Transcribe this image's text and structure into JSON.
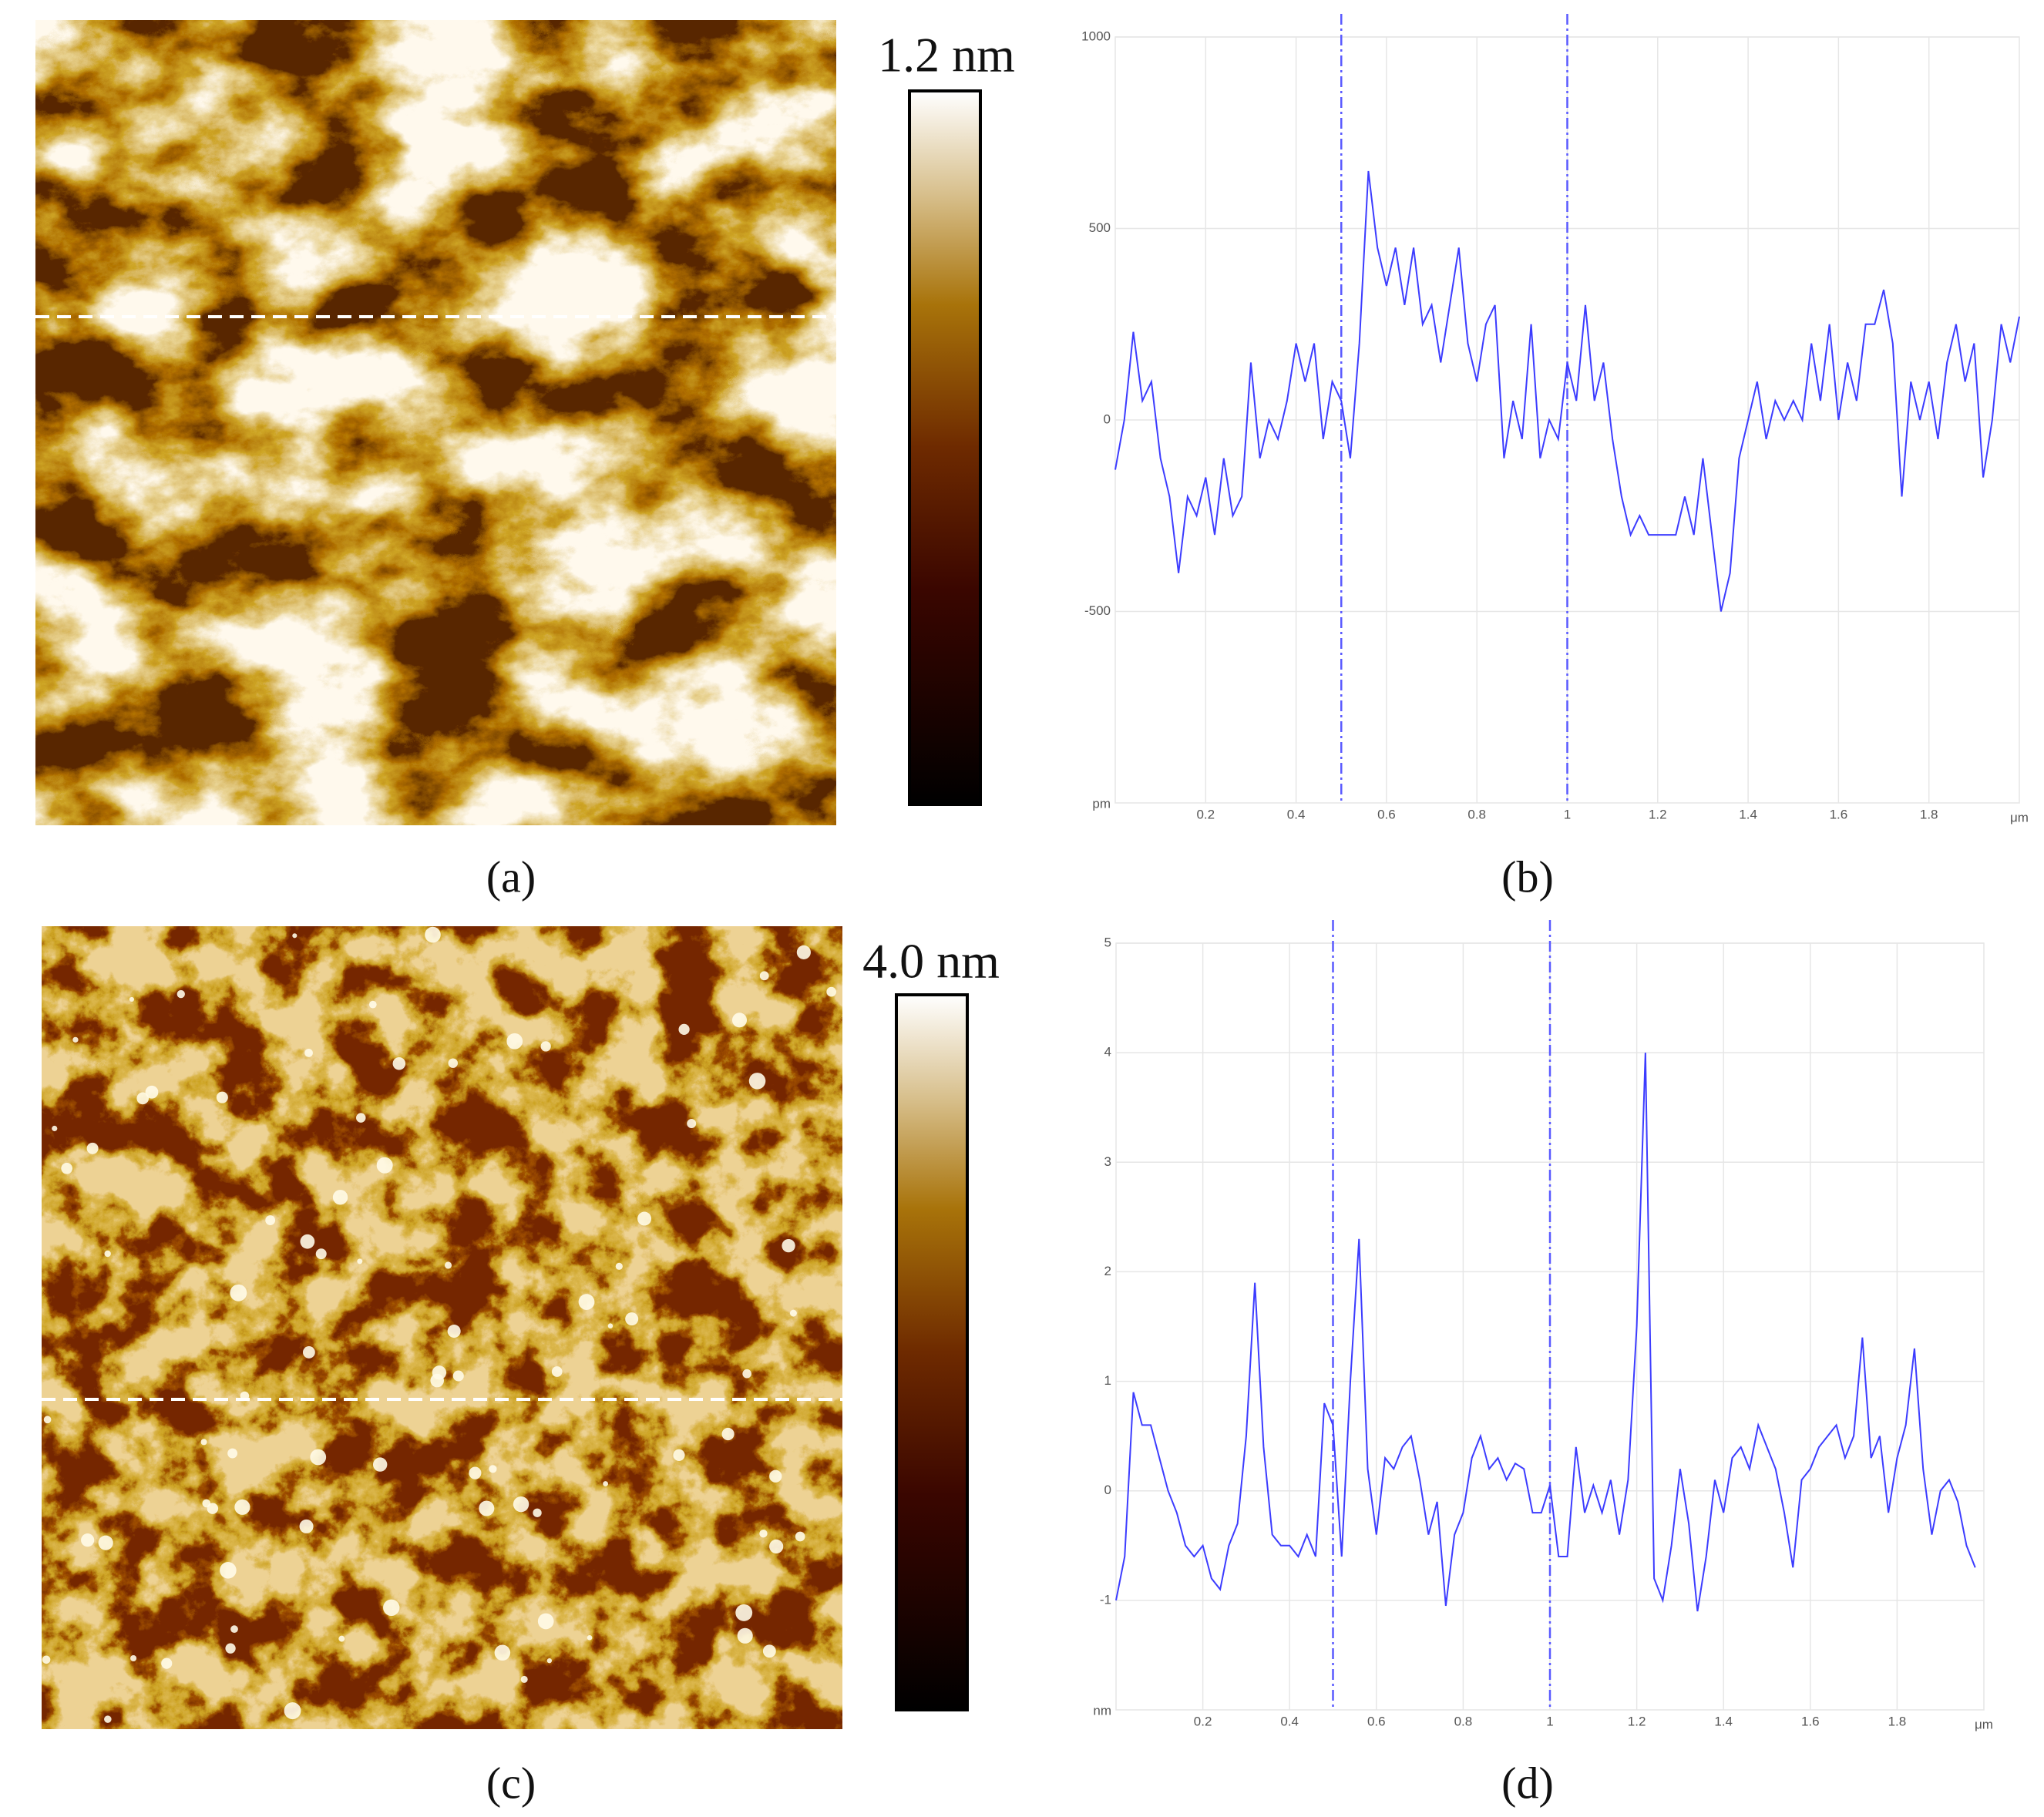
{
  "images": [
    {
      "scale_label": "1.2 nm",
      "caption": "(a)"
    },
    {
      "scale_label": "4.0 nm",
      "caption": "(c)"
    }
  ],
  "chart_data": [
    {
      "type": "line",
      "caption": "(b)",
      "xlabel": "μm",
      "ylabel": "pm",
      "xlim": [
        0,
        2
      ],
      "ylim": [
        -1000,
        1000
      ],
      "xticks": [
        0.2,
        0.4,
        0.6,
        0.8,
        1,
        1.2,
        1.4,
        1.6,
        1.8
      ],
      "yticks": [
        1000,
        500,
        0,
        -500
      ],
      "grid": true,
      "markers": [
        0.5,
        1
      ],
      "color": "#3c3cff",
      "x": [
        0,
        0.02,
        0.04,
        0.06,
        0.08,
        0.1,
        0.12,
        0.14,
        0.16,
        0.18,
        0.2,
        0.22,
        0.24,
        0.26,
        0.28,
        0.3,
        0.32,
        0.34,
        0.36,
        0.38,
        0.4,
        0.42,
        0.44,
        0.46,
        0.48,
        0.5,
        0.52,
        0.54,
        0.56,
        0.58,
        0.6,
        0.62,
        0.64,
        0.66,
        0.68,
        0.7,
        0.72,
        0.74,
        0.76,
        0.78,
        0.8,
        0.82,
        0.84,
        0.86,
        0.88,
        0.9,
        0.92,
        0.94,
        0.96,
        0.98,
        1,
        1.02,
        1.04,
        1.06,
        1.08,
        1.1,
        1.12,
        1.14,
        1.16,
        1.18,
        1.2,
        1.22,
        1.24,
        1.26,
        1.28,
        1.3,
        1.32,
        1.34,
        1.36,
        1.38,
        1.4,
        1.42,
        1.44,
        1.46,
        1.48,
        1.5,
        1.52,
        1.54,
        1.56,
        1.58,
        1.6,
        1.62,
        1.64,
        1.66,
        1.68,
        1.7,
        1.72,
        1.74,
        1.76,
        1.78,
        1.8,
        1.82,
        1.84,
        1.86,
        1.88,
        1.9,
        1.92,
        1.94,
        1.96,
        1.98,
        2
      ],
      "values": [
        -130,
        0,
        230,
        50,
        100,
        -100,
        -200,
        -400,
        -200,
        -250,
        -150,
        -300,
        -100,
        -250,
        -200,
        150,
        -100,
        0,
        -50,
        50,
        200,
        100,
        200,
        -50,
        100,
        50,
        -100,
        200,
        650,
        450,
        350,
        450,
        300,
        450,
        250,
        300,
        150,
        300,
        450,
        200,
        100,
        250,
        300,
        -100,
        50,
        -50,
        250,
        -100,
        0,
        -50,
        150,
        50,
        300,
        50,
        150,
        -50,
        -200,
        -300,
        -250,
        -300,
        -300,
        -300,
        -300,
        -200,
        -300,
        -100,
        -300,
        -500,
        -400,
        -100,
        0,
        100,
        -50,
        50,
        0,
        50,
        0,
        200,
        50,
        250,
        0,
        150,
        50,
        250,
        250,
        340,
        200,
        -200,
        100,
        0,
        100,
        -50,
        150,
        250,
        100,
        200,
        -150,
        0,
        250,
        150,
        270
      ]
    },
    {
      "type": "line",
      "caption": "(d)",
      "xlabel": "μm",
      "ylabel": "nm",
      "xlim": [
        0,
        2
      ],
      "ylim": [
        -2,
        5
      ],
      "xticks": [
        0.2,
        0.4,
        0.6,
        0.8,
        1,
        1.2,
        1.4,
        1.6,
        1.8
      ],
      "yticks": [
        5,
        4,
        3,
        2,
        1,
        0,
        -1
      ],
      "grid": true,
      "markers": [
        0.5,
        1
      ],
      "color": "#3c3cff",
      "x": [
        0,
        0.02,
        0.04,
        0.06,
        0.08,
        0.1,
        0.12,
        0.14,
        0.16,
        0.18,
        0.2,
        0.22,
        0.24,
        0.26,
        0.28,
        0.3,
        0.32,
        0.34,
        0.36,
        0.38,
        0.4,
        0.42,
        0.44,
        0.46,
        0.48,
        0.5,
        0.52,
        0.54,
        0.56,
        0.58,
        0.6,
        0.62,
        0.64,
        0.66,
        0.68,
        0.7,
        0.72,
        0.74,
        0.76,
        0.78,
        0.8,
        0.82,
        0.84,
        0.86,
        0.88,
        0.9,
        0.92,
        0.94,
        0.96,
        0.98,
        1,
        1.02,
        1.04,
        1.06,
        1.08,
        1.1,
        1.12,
        1.14,
        1.16,
        1.18,
        1.2,
        1.22,
        1.24,
        1.26,
        1.28,
        1.3,
        1.32,
        1.34,
        1.36,
        1.38,
        1.4,
        1.42,
        1.44,
        1.46,
        1.48,
        1.5,
        1.52,
        1.54,
        1.56,
        1.58,
        1.6,
        1.62,
        1.64,
        1.66,
        1.68,
        1.7,
        1.72,
        1.74,
        1.76,
        1.78,
        1.8,
        1.82,
        1.84,
        1.86,
        1.88,
        1.9,
        1.92,
        1.94,
        1.96,
        1.98
      ],
      "values": [
        -1,
        -0.6,
        0.9,
        0.6,
        0.6,
        0.3,
        0,
        -0.2,
        -0.5,
        -0.6,
        -0.5,
        -0.8,
        -0.9,
        -0.5,
        -0.3,
        0.5,
        1.9,
        0.4,
        -0.4,
        -0.5,
        -0.5,
        -0.6,
        -0.4,
        -0.6,
        0.8,
        0.6,
        -0.6,
        1.0,
        2.3,
        0.2,
        -0.4,
        0.3,
        0.2,
        0.4,
        0.5,
        0.1,
        -0.4,
        -0.1,
        -1.05,
        -0.4,
        -0.2,
        0.3,
        0.5,
        0.2,
        0.3,
        0.1,
        0.25,
        0.2,
        -0.2,
        -0.2,
        0.05,
        -0.6,
        -0.6,
        0.4,
        -0.2,
        0.05,
        -0.2,
        0.1,
        -0.4,
        0.1,
        1.5,
        4.0,
        -0.8,
        -1.0,
        -0.5,
        0.2,
        -0.3,
        -1.1,
        -0.6,
        0.1,
        -0.2,
        0.3,
        0.4,
        0.2,
        0.6,
        0.4,
        0.2,
        -0.2,
        -0.7,
        0.1,
        0.2,
        0.4,
        0.5,
        0.6,
        0.3,
        0.5,
        1.4,
        0.3,
        0.5,
        -0.2,
        0.3,
        0.6,
        1.3,
        0.2,
        -0.4,
        0,
        0.1,
        -0.1,
        -0.5,
        -0.7
      ]
    }
  ]
}
